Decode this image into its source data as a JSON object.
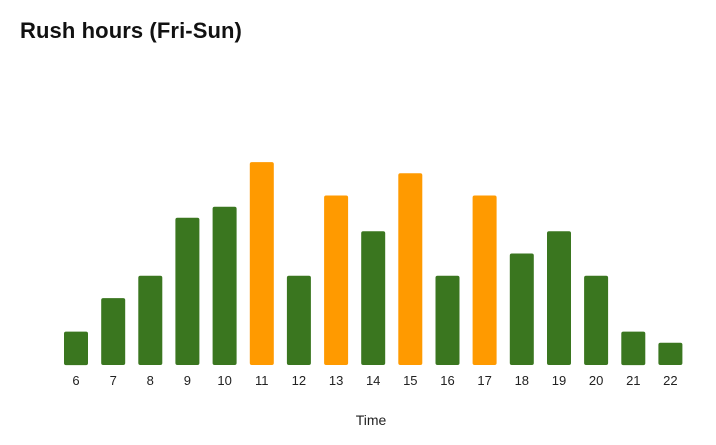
{
  "chart_data": {
    "type": "bar",
    "title": "Rush hours (Fri-Sun)",
    "xlabel": "Time",
    "ylabel": "",
    "categories": [
      "6",
      "7",
      "8",
      "9",
      "10",
      "11",
      "12",
      "13",
      "14",
      "15",
      "16",
      "17",
      "18",
      "19",
      "20",
      "21",
      "22"
    ],
    "values": [
      15,
      30,
      40,
      66,
      71,
      91,
      40,
      76,
      60,
      86,
      40,
      76,
      50,
      60,
      40,
      15,
      10
    ],
    "highlighted": [
      false,
      false,
      false,
      false,
      false,
      true,
      false,
      true,
      false,
      true,
      false,
      true,
      false,
      false,
      false,
      false,
      false
    ],
    "ylim": [
      0,
      100
    ],
    "grid": false,
    "legend": "none",
    "colors": {
      "normal": "#3a761f",
      "highlight": "#ff9a00"
    }
  }
}
